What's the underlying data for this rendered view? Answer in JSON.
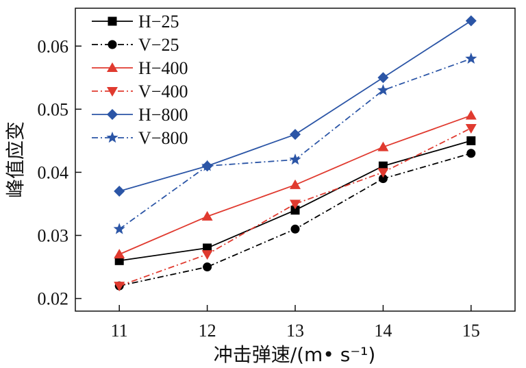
{
  "chart_data": {
    "type": "line",
    "title": "",
    "xlabel": "冲击弹速/(m• s⁻¹)",
    "ylabel": "峰值应变",
    "x": [
      11,
      12,
      13,
      14,
      15
    ],
    "xlim": [
      10.5,
      15.5
    ],
    "ylim": [
      0.018,
      0.066
    ],
    "x_ticks": [
      "11",
      "12",
      "13",
      "14",
      "15"
    ],
    "y_ticks": [
      0.02,
      0.03,
      0.04,
      0.05,
      0.06
    ],
    "y_tick_labels": [
      "0.02",
      "0.03",
      "0.04",
      "0.05",
      "0.06"
    ],
    "grid": false,
    "legend_position": "top-left",
    "series": [
      {
        "name": "H−25",
        "values": [
          0.026,
          0.028,
          0.034,
          0.041,
          0.045
        ],
        "color": "#000000",
        "line": "solid",
        "marker": "square"
      },
      {
        "name": "V−25",
        "values": [
          0.022,
          0.025,
          0.031,
          0.039,
          0.043
        ],
        "color": "#000000",
        "line": "dashdot",
        "marker": "circle"
      },
      {
        "name": "H−400",
        "values": [
          0.027,
          0.033,
          0.038,
          0.044,
          0.049
        ],
        "color": "#e03a2f",
        "line": "solid",
        "marker": "triangle-up"
      },
      {
        "name": "V−400",
        "values": [
          0.022,
          0.027,
          0.035,
          0.04,
          0.047
        ],
        "color": "#e03a2f",
        "line": "dashdot",
        "marker": "triangle-down"
      },
      {
        "name": "H−800",
        "values": [
          0.037,
          0.041,
          0.046,
          0.055,
          0.064
        ],
        "color": "#2b55a6",
        "line": "solid",
        "marker": "diamond"
      },
      {
        "name": "V−800",
        "values": [
          0.031,
          0.041,
          0.042,
          0.053,
          0.058
        ],
        "color": "#2b55a6",
        "line": "dashdot",
        "marker": "star"
      }
    ]
  }
}
